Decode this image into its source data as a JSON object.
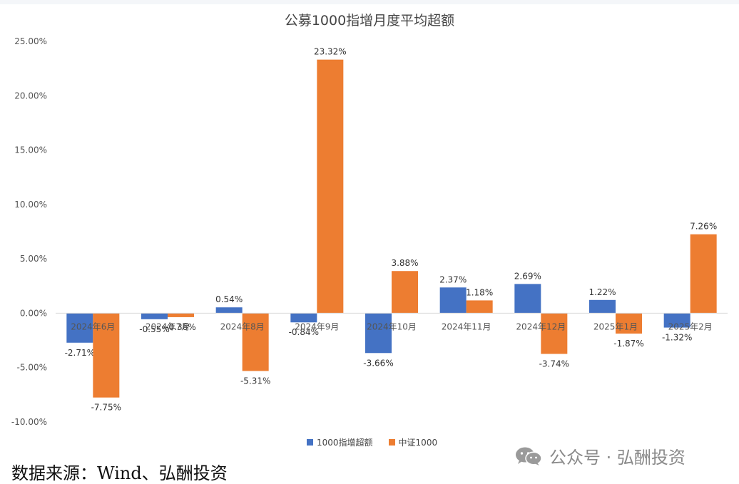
{
  "chart_data": {
    "type": "bar",
    "title": "公募1000指增月度平均超额",
    "categories": [
      "2024年6月",
      "2024年7月",
      "2024年8月",
      "2024年9月",
      "2024年10月",
      "2024年11月",
      "2024年12月",
      "2025年1月",
      "2025年2月"
    ],
    "series": [
      {
        "name": "1000指增超额",
        "color": "#4472C4",
        "values": [
          -2.71,
          -0.55,
          0.54,
          -0.84,
          -3.66,
          2.37,
          2.69,
          1.22,
          -1.32
        ],
        "labels": [
          "-2.71%",
          "-0.55%",
          "0.54%",
          "-0.84%",
          "-3.66%",
          "2.37%",
          "2.69%",
          "1.22%",
          "-1.32%"
        ]
      },
      {
        "name": "中证1000",
        "color": "#ED7D31",
        "values": [
          -7.75,
          -0.36,
          -5.31,
          23.32,
          3.88,
          1.18,
          -3.74,
          -1.87,
          7.26
        ],
        "labels": [
          "-7.75%",
          "-0.36%",
          "-5.31%",
          "23.32%",
          "3.88%",
          "1.18%",
          "-3.74%",
          "-1.87%",
          "7.26%"
        ]
      }
    ],
    "ylim": [
      -10,
      25
    ],
    "yticks": [
      25,
      20,
      15,
      10,
      5,
      0,
      -5,
      -10
    ],
    "ytick_labels": [
      "25.00%",
      "20.00%",
      "15.00%",
      "10.00%",
      "5.00%",
      "0.00%",
      "-5.00%",
      "-10.00%"
    ],
    "xlabel": "",
    "ylabel": "",
    "grid": false,
    "legend_position": "bottom"
  },
  "watermark": {
    "text": "公众号 · 弘酬投资",
    "icon": "wechat-icon"
  },
  "source_note": "数据来源：Wind、弘酬投资"
}
